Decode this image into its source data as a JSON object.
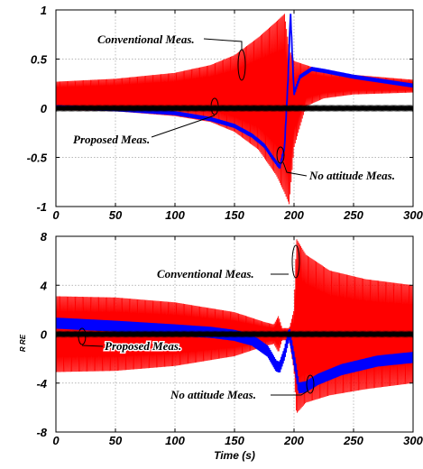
{
  "chart_data": [
    {
      "type": "line",
      "xlabel": "",
      "ylabel": "",
      "xlim": [
        0,
        300
      ],
      "ylim": [
        -1,
        1
      ],
      "xticks": [
        "0",
        "50",
        "100",
        "150",
        "200",
        "250",
        "300"
      ],
      "yticks": [
        "1",
        "0.5",
        "0",
        "-0.5",
        "-1"
      ],
      "grid": true,
      "colors": {
        "conventional": "#ff0000",
        "proposed": "#0000ff",
        "no_attitude": "#000000"
      },
      "series": [
        {
          "name": "Conventional Meas.",
          "kind": "oscillation_envelope",
          "x": [
            0,
            50,
            100,
            130,
            150,
            170,
            185,
            192,
            196,
            200,
            210,
            225,
            250,
            300
          ],
          "upper": [
            0.27,
            0.3,
            0.36,
            0.44,
            0.54,
            0.72,
            0.88,
            0.96,
            0.6,
            0.48,
            0.44,
            0.38,
            0.34,
            0.29
          ],
          "lower": [
            -0.02,
            -0.03,
            -0.08,
            -0.14,
            -0.24,
            -0.42,
            -0.68,
            -0.86,
            -0.98,
            -0.4,
            0.02,
            0.1,
            0.14,
            0.16
          ]
        },
        {
          "name": "Proposed Meas.",
          "kind": "line",
          "x": [
            0,
            50,
            100,
            130,
            150,
            165,
            175,
            183,
            188,
            192,
            195,
            197,
            200,
            205,
            215,
            225,
            250,
            300
          ],
          "y": [
            0.01,
            -0.01,
            -0.05,
            -0.11,
            -0.18,
            -0.28,
            -0.38,
            -0.52,
            -0.6,
            -0.4,
            0.3,
            0.98,
            0.15,
            0.32,
            0.4,
            0.38,
            0.32,
            0.23
          ],
          "band": 0.02
        },
        {
          "name": "No attitude Meas.",
          "kind": "line",
          "x": [
            0,
            300
          ],
          "y": [
            0,
            0
          ],
          "band": 0.01
        }
      ],
      "annotations": [
        {
          "text": "Conventional Meas.",
          "x": 57,
          "y": 0.63
        },
        {
          "text": "Proposed Meas.",
          "x": 42,
          "y": -0.27
        },
        {
          "text": "No attitude Meas.",
          "x": 205,
          "y": -0.68
        }
      ]
    },
    {
      "type": "line",
      "xlabel": "Time (s)",
      "ylabel": "R    RE",
      "xlim": [
        0,
        300
      ],
      "ylim": [
        -8,
        8
      ],
      "xticks": [
        "0",
        "50",
        "100",
        "150",
        "200",
        "250",
        "300"
      ],
      "yticks": [
        "8",
        "4",
        "0",
        "-4",
        "-8"
      ],
      "grid": true,
      "colors": {
        "conventional": "#ff0000",
        "proposed": "#0000ff",
        "no_attitude": "#000000"
      },
      "series": [
        {
          "name": "Conventional Meas.",
          "kind": "oscillation_envelope",
          "x": [
            0,
            50,
            100,
            150,
            175,
            183,
            187,
            190,
            196,
            200,
            202,
            210,
            230,
            260,
            300
          ],
          "upper": [
            3.1,
            3.0,
            2.6,
            1.8,
            1.0,
            0.8,
            1.5,
            0.5,
            0.5,
            2.0,
            7.8,
            6.5,
            5.2,
            4.5,
            4.0
          ],
          "lower": [
            -3.1,
            -3.0,
            -2.6,
            -1.8,
            -1.0,
            -0.8,
            -1.5,
            -0.5,
            -0.5,
            -3.0,
            -6.5,
            -5.6,
            -5.0,
            -4.5,
            -4.0
          ]
        },
        {
          "name": "Proposed Meas.",
          "kind": "line",
          "x": [
            0,
            50,
            100,
            130,
            150,
            165,
            178,
            185,
            188,
            192,
            196,
            200,
            204,
            210,
            220,
            240,
            270,
            300
          ],
          "y": [
            0.9,
            0.65,
            0.35,
            0.15,
            -0.1,
            -0.5,
            -1.4,
            -2.6,
            -2.7,
            -1.6,
            0.1,
            -2.0,
            -4.4,
            -4.3,
            -3.7,
            -2.9,
            -2.2,
            -1.9
          ],
          "band": 0.45
        },
        {
          "name": "No attitude Meas.",
          "kind": "line",
          "x": [
            0,
            300
          ],
          "y": [
            0,
            0
          ],
          "band": 0.08
        }
      ],
      "annotations": [
        {
          "text": "Conventional Meas.",
          "x": 163,
          "y": 4.9
        },
        {
          "text": "Proposed Meas.",
          "x": 13,
          "y": -1.1
        },
        {
          "text": "No attitude Meas.",
          "x": 185,
          "y": -5.2
        }
      ]
    }
  ]
}
